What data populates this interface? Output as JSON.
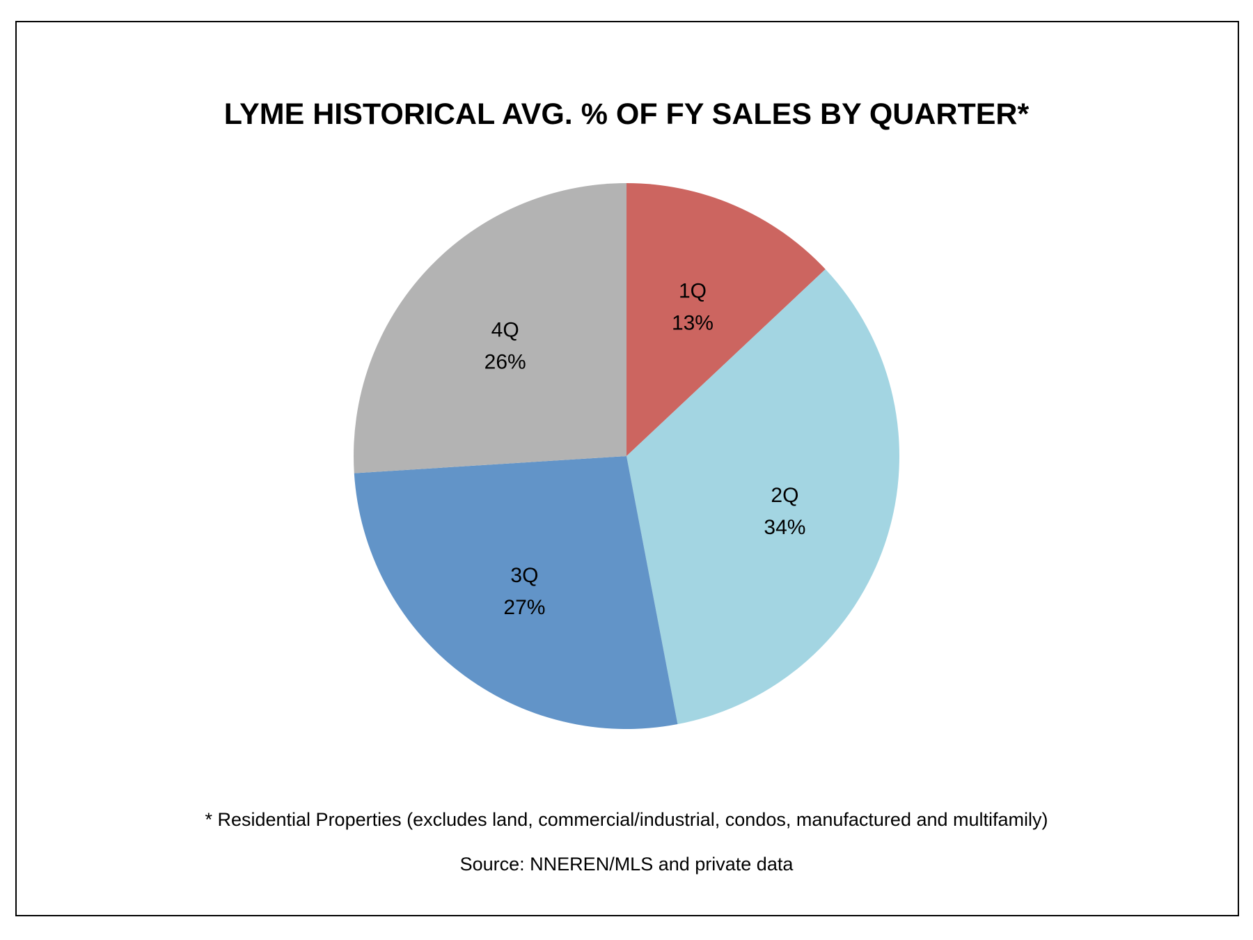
{
  "chart_data": {
    "type": "pie",
    "title": "LYME HISTORICAL AVG. % OF FY SALES BY QUARTER*",
    "categories": [
      "1Q",
      "2Q",
      "3Q",
      "4Q"
    ],
    "values": [
      13,
      34,
      27,
      26
    ],
    "value_labels": [
      "13%",
      "34%",
      "27%",
      "26%"
    ],
    "colors": [
      "#CC6560",
      "#A3D5E2",
      "#6294C8",
      "#B3B3B3"
    ],
    "start_angle": "12 o'clock",
    "direction": "clockwise",
    "legend": "none (labels inside slices)"
  },
  "footnotes": {
    "note": "* Residential Properties (excludes land, commercial/industrial, condos, manufactured and multifamily)",
    "source": "Source: NNEREN/MLS and private data"
  }
}
